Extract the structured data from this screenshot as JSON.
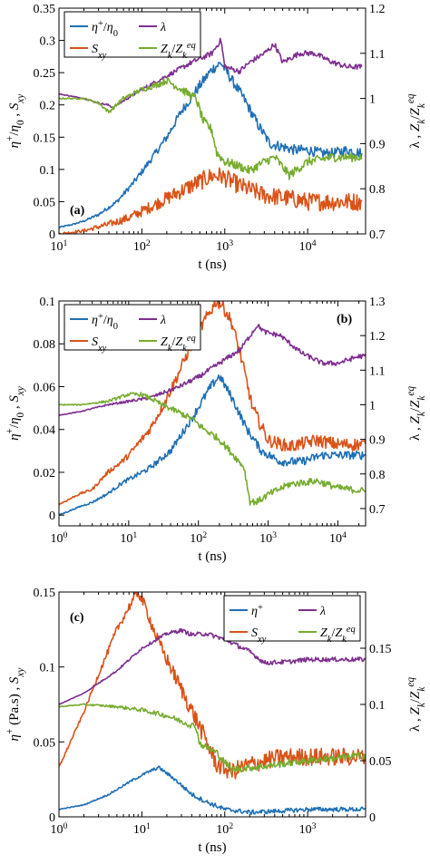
{
  "colors": {
    "eta": "#1f6fb5",
    "lambda": "#7e2f8e",
    "sxy": "#d95319",
    "z": "#77ac30"
  },
  "chart_data": [
    {
      "type": "line",
      "panel_label": "(a)",
      "xscale": "log",
      "xlim": [
        10,
        50000
      ],
      "xticks": [
        10,
        100,
        1000,
        10000
      ],
      "xtick_labels": [
        "10^1",
        "10^2",
        "10^3",
        "10^4"
      ],
      "ylim_left": [
        0,
        0.35
      ],
      "yticks_left": [
        "0",
        "0.05",
        "0.1",
        "0.15",
        "0.2",
        "0.25",
        "0.3",
        "0.35"
      ],
      "ylim_right": [
        0.7,
        1.2
      ],
      "yticks_right": [
        "0.7",
        "0.8",
        "0.9",
        "1",
        "1.1",
        "1.2"
      ],
      "xlabel": "t (ns)",
      "ylabel_left": "η+/η0 , Sxy",
      "ylabel_right": "λ , Zk/Zk^eq",
      "legend": {
        "placement": "top-left",
        "entries": [
          "η+/η0",
          "λ",
          "Sxy",
          "Zk/Zk^eq"
        ]
      },
      "series": [
        {
          "name": "η+/η0",
          "axis": "left",
          "color_key": "eta",
          "noise": 0.008,
          "x": [
            10,
            15,
            20,
            30,
            50,
            80,
            120,
            200,
            300,
            500,
            700,
            900,
            1200,
            1700,
            2500,
            3500,
            5000,
            7000,
            10000,
            15000,
            20000,
            30000,
            45000
          ],
          "y": [
            0.01,
            0.015,
            0.02,
            0.03,
            0.05,
            0.08,
            0.11,
            0.15,
            0.19,
            0.23,
            0.255,
            0.265,
            0.24,
            0.21,
            0.17,
            0.14,
            0.135,
            0.13,
            0.13,
            0.125,
            0.125,
            0.13,
            0.125
          ]
        },
        {
          "name": "Sxy",
          "axis": "left",
          "color_key": "sxy",
          "noise": 0.014,
          "x": [
            10,
            20,
            40,
            70,
            100,
            200,
            400,
            700,
            900,
            1500,
            3000,
            6000,
            10000,
            20000,
            30000,
            45000
          ],
          "y": [
            0.0,
            0.005,
            0.015,
            0.025,
            0.035,
            0.055,
            0.075,
            0.09,
            0.09,
            0.075,
            0.06,
            0.055,
            0.05,
            0.05,
            0.05,
            0.05
          ]
        },
        {
          "name": "λ",
          "axis": "right",
          "color_key": "lambda",
          "noise": 0.006,
          "x": [
            10,
            20,
            30,
            40,
            45,
            60,
            100,
            200,
            400,
            700,
            900,
            1000,
            1500,
            2000,
            3000,
            4000,
            5000,
            8000,
            12000,
            20000,
            30000,
            45000
          ],
          "y": [
            1.01,
            1.0,
            0.99,
            0.985,
            0.98,
            0.995,
            1.02,
            1.05,
            1.08,
            1.1,
            1.13,
            1.07,
            1.06,
            1.08,
            1.1,
            1.12,
            1.08,
            1.1,
            1.1,
            1.08,
            1.07,
            1.07
          ]
        },
        {
          "name": "Zk/Zk^eq",
          "axis": "right",
          "color_key": "z",
          "noise": 0.01,
          "x": [
            10,
            20,
            30,
            40,
            60,
            100,
            150,
            200,
            300,
            450,
            550,
            700,
            800,
            1000,
            1500,
            2000,
            3000,
            4000,
            6000,
            10000,
            20000,
            45000
          ],
          "y": [
            1.0,
            1.0,
            0.99,
            0.97,
            1.0,
            1.02,
            1.03,
            1.04,
            1.02,
            1.0,
            0.95,
            0.93,
            0.88,
            0.86,
            0.85,
            0.84,
            0.86,
            0.87,
            0.83,
            0.86,
            0.87,
            0.87
          ]
        }
      ]
    },
    {
      "type": "line",
      "panel_label": "(b)",
      "xscale": "log",
      "xlim": [
        1,
        25000
      ],
      "xticks": [
        1,
        10,
        100,
        1000,
        10000
      ],
      "xtick_labels": [
        "10^0",
        "10^1",
        "10^2",
        "10^3",
        "10^4"
      ],
      "ylim_left": [
        -0.005,
        0.1
      ],
      "yticks_left": [
        "0",
        "0.02",
        "0.04",
        "0.06",
        "0.08",
        "0.1"
      ],
      "ylim_right": [
        0.65,
        1.3
      ],
      "yticks_right": [
        "0.7",
        "0.8",
        "0.9",
        "1",
        "1.1",
        "1.2",
        "1.3"
      ],
      "xlabel": "t (ns)",
      "ylabel_left": "η+/η0 , Sxy",
      "ylabel_right": "λ , Zk/Zk^eq",
      "legend": {
        "placement": "top-left",
        "entries": [
          "η+/η0",
          "λ",
          "Sxy",
          "Zk/Zk^eq"
        ]
      },
      "series": [
        {
          "name": "η+/η0",
          "axis": "left",
          "color_key": "eta",
          "noise": 0.002,
          "x": [
            1,
            2,
            3,
            5,
            8,
            12,
            20,
            40,
            80,
            150,
            200,
            300,
            500,
            800,
            1500,
            3000,
            6000,
            12000,
            25000
          ],
          "y": [
            0.0,
            0.004,
            0.006,
            0.01,
            0.015,
            0.018,
            0.022,
            0.03,
            0.045,
            0.06,
            0.065,
            0.055,
            0.04,
            0.03,
            0.025,
            0.025,
            0.028,
            0.028,
            0.028
          ]
        },
        {
          "name": "Sxy",
          "axis": "left",
          "color_key": "sxy",
          "noise": 0.003,
          "x": [
            1,
            2,
            3,
            5,
            8,
            10,
            15,
            20,
            30,
            50,
            80,
            120,
            180,
            220,
            300,
            400,
            600,
            1000,
            2000,
            5000,
            10000,
            25000
          ],
          "y": [
            0.005,
            0.01,
            0.012,
            0.02,
            0.025,
            0.028,
            0.035,
            0.04,
            0.05,
            0.065,
            0.08,
            0.09,
            0.1,
            0.098,
            0.09,
            0.075,
            0.05,
            0.035,
            0.032,
            0.035,
            0.033,
            0.033
          ]
        },
        {
          "name": "λ",
          "axis": "right",
          "color_key": "lambda",
          "noise": 0.007,
          "x": [
            1,
            2,
            5,
            10,
            20,
            50,
            100,
            200,
            400,
            700,
            900,
            1500,
            3000,
            6000,
            10000,
            20000,
            25000
          ],
          "y": [
            0.97,
            0.98,
            1.0,
            1.01,
            1.02,
            1.05,
            1.08,
            1.12,
            1.16,
            1.23,
            1.21,
            1.2,
            1.15,
            1.12,
            1.12,
            1.14,
            1.14
          ]
        },
        {
          "name": "Zk/Zk^eq",
          "axis": "right",
          "color_key": "z",
          "noise": 0.01,
          "x": [
            1,
            2,
            5,
            10,
            15,
            20,
            30,
            50,
            80,
            120,
            200,
            300,
            450,
            550,
            700,
            1000,
            2000,
            5000,
            10000,
            25000
          ],
          "y": [
            1.0,
            1.0,
            1.01,
            1.03,
            1.03,
            1.02,
            1.0,
            0.98,
            0.96,
            0.93,
            0.9,
            0.86,
            0.82,
            0.72,
            0.72,
            0.74,
            0.77,
            0.78,
            0.76,
            0.75
          ]
        }
      ]
    },
    {
      "type": "line",
      "panel_label": "(c)",
      "xscale": "log",
      "xlim": [
        1,
        5000
      ],
      "xticks": [
        1,
        10,
        100,
        1000
      ],
      "xtick_labels": [
        "10^0",
        "10^1",
        "10^2",
        "10^3"
      ],
      "ylim_left": [
        0,
        0.15
      ],
      "yticks_left": [
        "0",
        "0.05",
        "0.1",
        "0.15"
      ],
      "ylim_right": [
        0,
        0.2
      ],
      "yticks_right": [
        "0",
        "0.05",
        "0.1",
        "0.15"
      ],
      "xlabel": "t (ns)",
      "ylabel_left": "η+ (Pa.s) , Sxy",
      "ylabel_right": "λ , Zk/Zk^eq",
      "legend": {
        "placement": "top-right",
        "entries": [
          "η+",
          "λ",
          "Sxy",
          "Zk/Zk^eq"
        ]
      },
      "series": [
        {
          "name": "η+",
          "axis": "left",
          "color_key": "eta",
          "noise": 0.0015,
          "x": [
            1,
            2,
            4,
            8,
            12,
            16,
            25,
            40,
            60,
            100,
            200,
            500,
            1000,
            2000,
            5000
          ],
          "y": [
            0.005,
            0.008,
            0.015,
            0.025,
            0.03,
            0.033,
            0.025,
            0.015,
            0.01,
            0.005,
            0.003,
            0.004,
            0.005,
            0.005,
            0.005
          ]
        },
        {
          "name": "Sxy",
          "axis": "left",
          "color_key": "sxy",
          "noise": 0.006,
          "x": [
            1,
            2,
            3,
            5,
            7,
            9,
            11,
            15,
            20,
            30,
            50,
            80,
            120,
            200,
            500,
            1000,
            2000,
            5000
          ],
          "y": [
            0.033,
            0.07,
            0.095,
            0.125,
            0.14,
            0.15,
            0.14,
            0.12,
            0.105,
            0.085,
            0.06,
            0.035,
            0.03,
            0.035,
            0.04,
            0.04,
            0.04,
            0.04
          ]
        },
        {
          "name": "λ",
          "axis": "right",
          "color_key": "lambda",
          "noise": 0.002,
          "x": [
            1,
            2,
            5,
            10,
            20,
            30,
            40,
            60,
            100,
            200,
            300,
            600,
            1000,
            2000,
            5000
          ],
          "y": [
            0.1,
            0.11,
            0.13,
            0.15,
            0.163,
            0.166,
            0.162,
            0.163,
            0.158,
            0.147,
            0.137,
            0.138,
            0.14,
            0.14,
            0.14
          ]
        },
        {
          "name": "Zk/Zk^eq",
          "axis": "right",
          "color_key": "z",
          "noise": 0.003,
          "x": [
            1,
            2,
            5,
            10,
            20,
            30,
            45,
            50,
            80,
            120,
            300,
            1000,
            2000,
            5000
          ],
          "y": [
            0.098,
            0.1,
            0.098,
            0.095,
            0.09,
            0.085,
            0.08,
            0.065,
            0.057,
            0.042,
            0.045,
            0.05,
            0.052,
            0.055
          ]
        }
      ]
    }
  ]
}
